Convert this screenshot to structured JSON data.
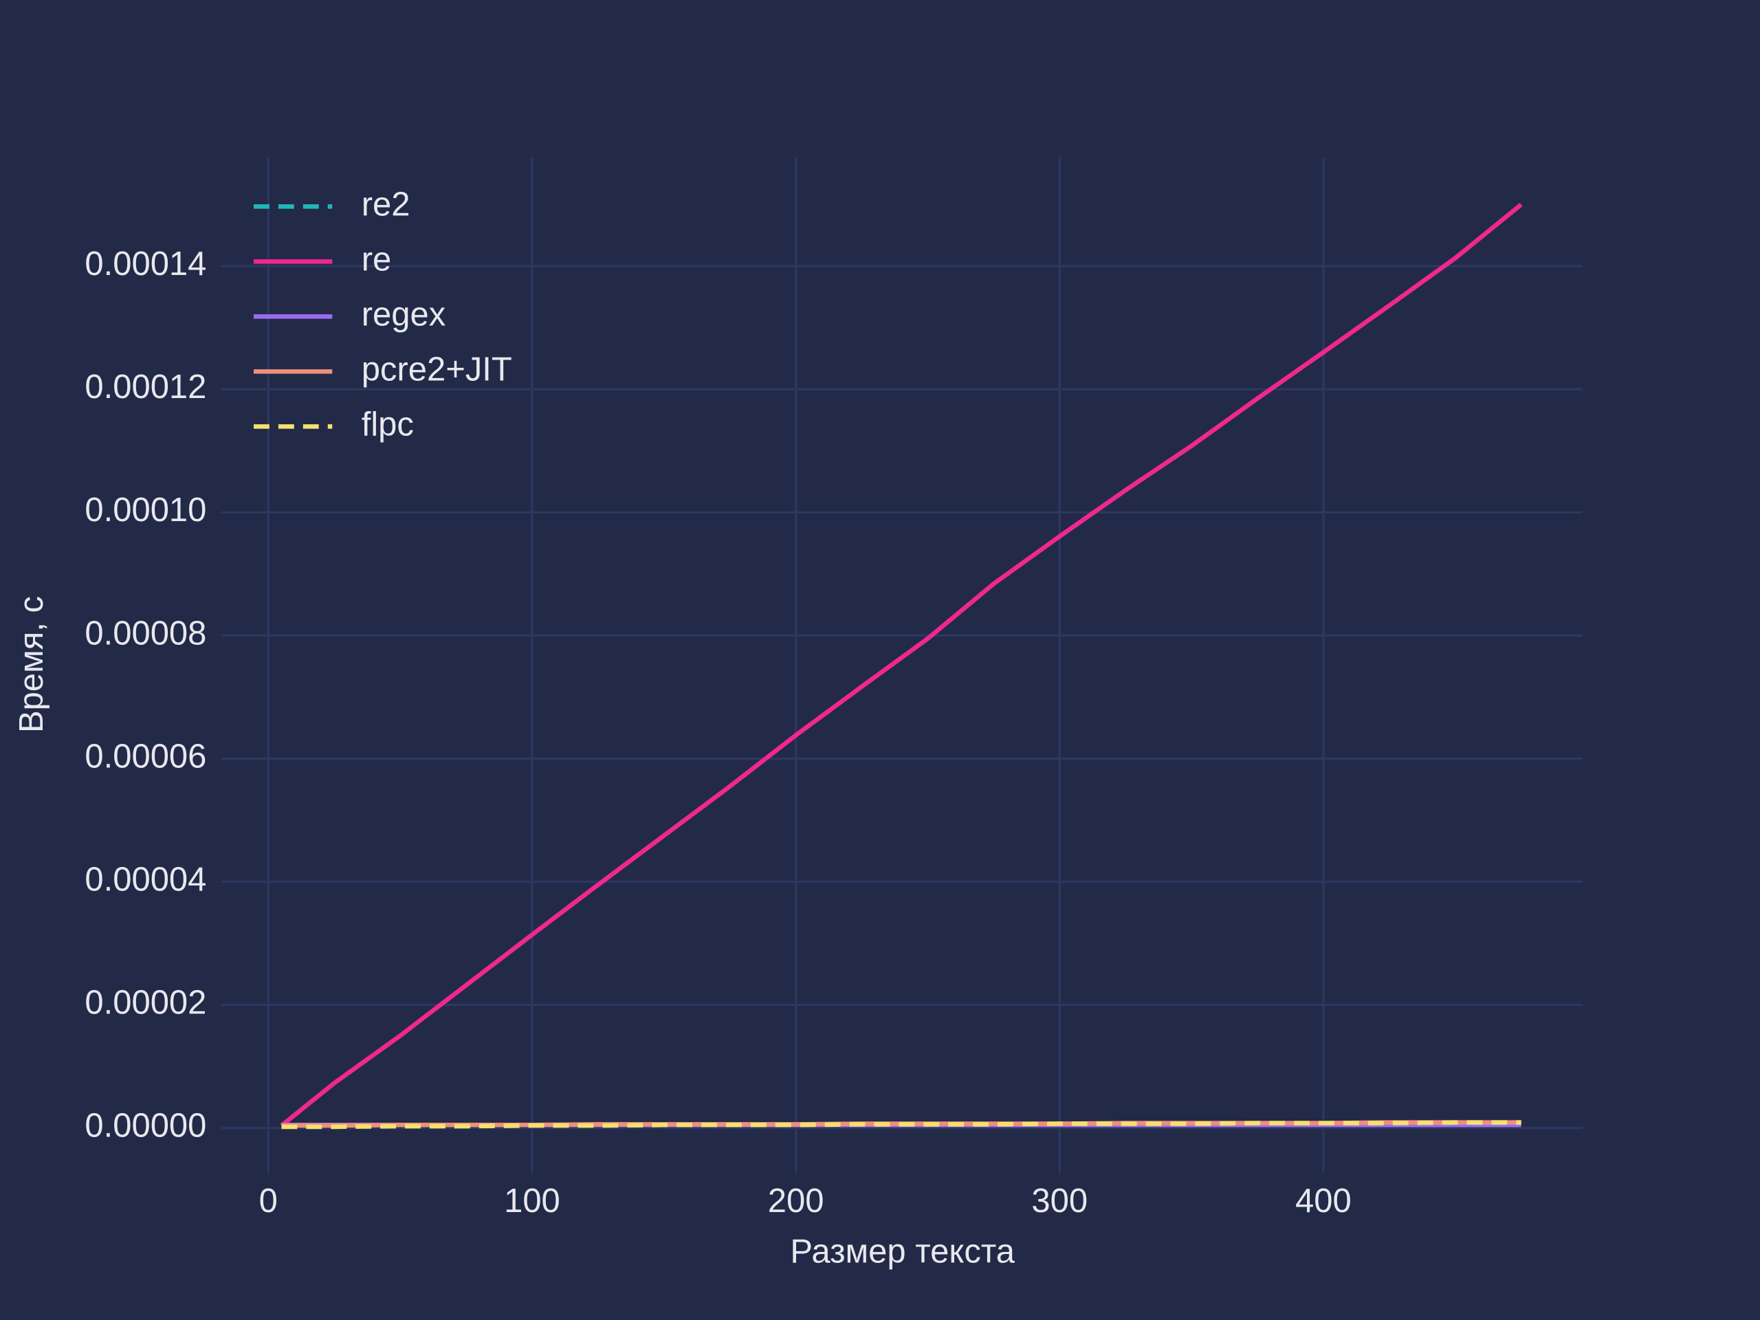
{
  "chart_data": {
    "type": "line",
    "x_label": "Размер текста",
    "y_label": "Время, с",
    "x": [
      5,
      25,
      50,
      75,
      100,
      125,
      150,
      175,
      200,
      225,
      250,
      275,
      300,
      325,
      350,
      375,
      400,
      425,
      450,
      475
    ],
    "series": [
      {
        "name": "re2",
        "color": "#1fb8b8",
        "dashed": true,
        "values": [
          4e-07,
          4e-07,
          4e-07,
          5e-07,
          5e-07,
          5e-07,
          5e-07,
          5e-07,
          6e-07,
          6e-07,
          6e-07,
          6e-07,
          6e-07,
          7e-07,
          7e-07,
          7e-07,
          7e-07,
          7e-07,
          8e-07,
          8e-07
        ]
      },
      {
        "name": "re",
        "color": "#f0288e",
        "dashed": false,
        "values": [
          4e-07,
          7.3e-06,
          1.5e-05,
          2.32e-05,
          3.14e-05,
          3.95e-05,
          4.75e-05,
          5.55e-05,
          6.38e-05,
          7.17e-05,
          7.95e-05,
          8.84e-05,
          9.61e-05,
          0.0001036,
          0.0001108,
          0.0001185,
          0.000126,
          0.0001336,
          0.0001413,
          0.00015
        ]
      },
      {
        "name": "regex",
        "color": "#9c6cf0",
        "dashed": false,
        "values": [
          5e-07,
          5e-07,
          5e-07,
          5e-07,
          5e-07,
          5e-07,
          5e-07,
          5e-07,
          5e-07,
          5e-07,
          5e-07,
          5e-07,
          5e-07,
          5e-07,
          5e-07,
          5e-07,
          5e-07,
          5e-07,
          5e-07,
          5e-07
        ]
      },
      {
        "name": "pcre2+JIT",
        "color": "#ef8f7a",
        "dashed": false,
        "values": [
          4e-07,
          4e-07,
          5e-07,
          5e-07,
          5e-07,
          6e-07,
          6e-07,
          6e-07,
          6e-07,
          7e-07,
          7e-07,
          7e-07,
          7e-07,
          8e-07,
          8e-07,
          8e-07,
          8e-07,
          9e-07,
          9e-07,
          9e-07
        ]
      },
      {
        "name": "flpc",
        "color": "#f7e06e",
        "dashed": true,
        "values": [
          2e-07,
          2e-07,
          3e-07,
          3e-07,
          4e-07,
          4e-07,
          5e-07,
          5e-07,
          5e-07,
          6e-07,
          6e-07,
          6e-07,
          7e-07,
          7e-07,
          7e-07,
          8e-07,
          8e-07,
          8e-07,
          9e-07,
          9e-07
        ]
      }
    ],
    "xlim": [
      -17.9,
      498.3
    ],
    "xticks": [
      0,
      100,
      200,
      300,
      400
    ],
    "ylim": [
      -7.3e-06,
      0.0001577
    ],
    "yticks": [
      {
        "value": 0,
        "label": "0.00000"
      },
      {
        "value": 2e-05,
        "label": "0.00002"
      },
      {
        "value": 4e-05,
        "label": "0.00004"
      },
      {
        "value": 6e-05,
        "label": "0.00006"
      },
      {
        "value": 8e-05,
        "label": "0.00008"
      },
      {
        "value": 0.0001,
        "label": "0.00010"
      },
      {
        "value": 0.00012,
        "label": "0.00012"
      },
      {
        "value": 0.00014,
        "label": "0.00014"
      }
    ],
    "grid": true,
    "legend": "upper-left"
  }
}
